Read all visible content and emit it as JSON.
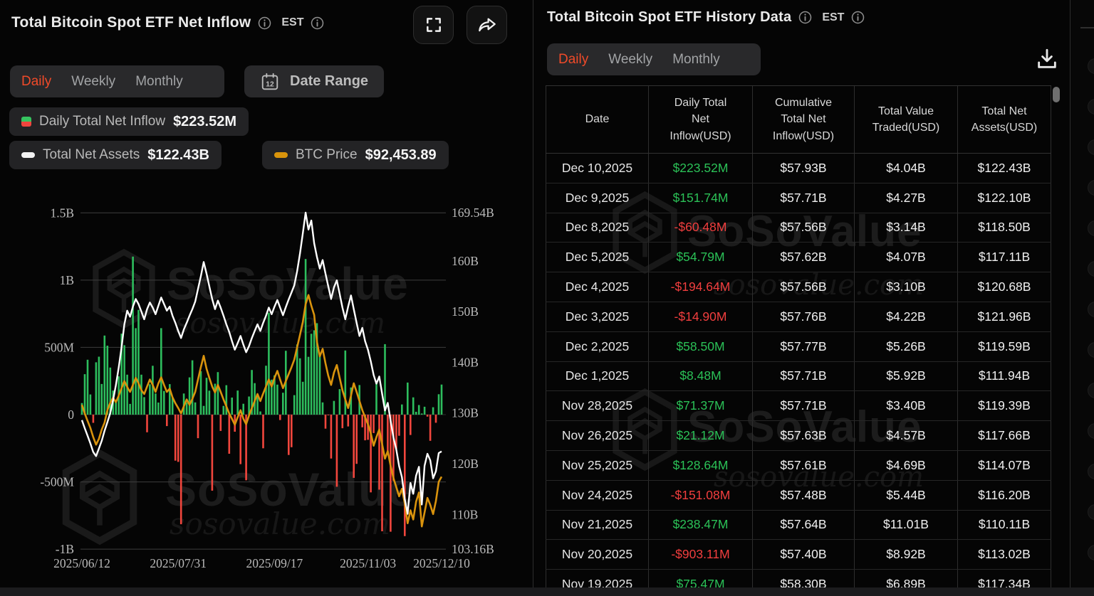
{
  "brand": {
    "name": "SoSoValue",
    "domain": "sosovalue.com"
  },
  "left_panel": {
    "title": "Total Bitcoin Spot ETF Net Inflow",
    "timezone": "EST",
    "tabs": [
      "Daily",
      "Weekly",
      "Monthly"
    ],
    "active_tab": "Daily",
    "date_range_label": "Date Range",
    "legend": [
      {
        "label": "Daily Total Net Inflow",
        "value": "$223.52M"
      },
      {
        "label": "Total Net Assets",
        "value": "$122.43B"
      },
      {
        "label": "BTC Price",
        "value": "$92,453.89"
      }
    ]
  },
  "right_panel": {
    "title": "Total Bitcoin Spot ETF History Data",
    "timezone": "EST",
    "tabs": [
      "Daily",
      "Weekly",
      "Monthly"
    ],
    "active_tab": "Daily",
    "table": {
      "columns": [
        "Date",
        "Daily Total\nNet\nInflow(USD)",
        "Cumulative\nTotal Net\nInflow(USD)",
        "Total Value\nTraded(USD)",
        "Total Net\nAssets(USD)"
      ],
      "rows": [
        {
          "date": "Dec 10,2025",
          "daily_net_inflow": "$223.52M",
          "direction": "positive",
          "cumulative_inflow": "$57.93B",
          "value_traded": "$4.04B",
          "net_assets": "$122.43B"
        },
        {
          "date": "Dec 9,2025",
          "daily_net_inflow": "$151.74M",
          "direction": "positive",
          "cumulative_inflow": "$57.71B",
          "value_traded": "$4.27B",
          "net_assets": "$122.10B"
        },
        {
          "date": "Dec 8,2025",
          "daily_net_inflow": "-$60.48M",
          "direction": "negative",
          "cumulative_inflow": "$57.56B",
          "value_traded": "$3.14B",
          "net_assets": "$118.50B"
        },
        {
          "date": "Dec 5,2025",
          "daily_net_inflow": "$54.79M",
          "direction": "positive",
          "cumulative_inflow": "$57.62B",
          "value_traded": "$4.07B",
          "net_assets": "$117.11B"
        },
        {
          "date": "Dec 4,2025",
          "daily_net_inflow": "-$194.64M",
          "direction": "negative",
          "cumulative_inflow": "$57.56B",
          "value_traded": "$3.10B",
          "net_assets": "$120.68B"
        },
        {
          "date": "Dec 3,2025",
          "daily_net_inflow": "-$14.90M",
          "direction": "negative",
          "cumulative_inflow": "$57.76B",
          "value_traded": "$4.22B",
          "net_assets": "$121.96B"
        },
        {
          "date": "Dec 2,2025",
          "daily_net_inflow": "$58.50M",
          "direction": "positive",
          "cumulative_inflow": "$57.77B",
          "value_traded": "$5.26B",
          "net_assets": "$119.59B"
        },
        {
          "date": "Dec 1,2025",
          "daily_net_inflow": "$8.48M",
          "direction": "positive",
          "cumulative_inflow": "$57.71B",
          "value_traded": "$5.92B",
          "net_assets": "$111.94B"
        },
        {
          "date": "Nov 28,2025",
          "daily_net_inflow": "$71.37M",
          "direction": "positive",
          "cumulative_inflow": "$57.71B",
          "value_traded": "$3.40B",
          "net_assets": "$119.39B"
        },
        {
          "date": "Nov 26,2025",
          "daily_net_inflow": "$21.12M",
          "direction": "positive",
          "cumulative_inflow": "$57.63B",
          "value_traded": "$4.57B",
          "net_assets": "$117.66B"
        },
        {
          "date": "Nov 25,2025",
          "daily_net_inflow": "$128.64M",
          "direction": "positive",
          "cumulative_inflow": "$57.61B",
          "value_traded": "$4.69B",
          "net_assets": "$114.07B"
        },
        {
          "date": "Nov 24,2025",
          "daily_net_inflow": "-$151.08M",
          "direction": "negative",
          "cumulative_inflow": "$57.48B",
          "value_traded": "$5.44B",
          "net_assets": "$116.20B"
        },
        {
          "date": "Nov 21,2025",
          "daily_net_inflow": "$238.47M",
          "direction": "positive",
          "cumulative_inflow": "$57.64B",
          "value_traded": "$11.01B",
          "net_assets": "$110.11B"
        },
        {
          "date": "Nov 20,2025",
          "daily_net_inflow": "-$903.11M",
          "direction": "negative",
          "cumulative_inflow": "$57.40B",
          "value_traded": "$8.92B",
          "net_assets": "$113.02B"
        },
        {
          "date": "Nov 19,2025",
          "daily_net_inflow": "$75.47M",
          "direction": "positive",
          "cumulative_inflow": "$58.30B",
          "value_traded": "$6.89B",
          "net_assets": "$117.34B"
        }
      ]
    }
  },
  "chart_data": {
    "type": "combo",
    "title": "Total Bitcoin Spot ETF Net Inflow (Daily)",
    "x_ticks": {
      "labels": [
        "2025/06/12",
        "2025/07/31",
        "2025/09/17",
        "2025/11/03",
        "2025/12/10"
      ],
      "indices": [
        0,
        34,
        68,
        101,
        127
      ]
    },
    "left_axis": {
      "name": "Daily Total Net Inflow (USD)",
      "tick_labels": [
        "1.5B",
        "1B",
        "500M",
        "0",
        "-500M",
        "-1B"
      ],
      "tick_values_M": [
        1500,
        1000,
        500,
        0,
        -500,
        -1000
      ]
    },
    "right_axis": {
      "name": "Total Net Assets (USD)",
      "tick_labels": [
        "169.54B",
        "160B",
        "150B",
        "140B",
        "130B",
        "120B",
        "110B",
        "103.16B"
      ],
      "tick_values_B": [
        169.54,
        160,
        150,
        140,
        130,
        120,
        110,
        103.16
      ],
      "range_B": [
        103.16,
        169.54
      ]
    },
    "btc_axis_range_USD": [
      79000,
      141500
    ],
    "grid": true,
    "legend_position": "top",
    "colors": {
      "positive_bar": "#2dbd5d",
      "negative_bar": "#f1463d",
      "net_assets_line": "#ffffff",
      "btc_line": "#d9930d"
    },
    "series": [
      {
        "name": "Daily Total Net Inflow",
        "type": "bar",
        "unit": "M USD",
        "values": [
          86,
          301,
          408,
          150,
          -61,
          389,
          431,
          228,
          588,
          513,
          350,
          179,
          102,
          285,
          602,
          516,
          297,
          80,
          1175,
          643,
          779,
          297,
          130,
          -131,
          226,
          363,
          157,
          90,
          643,
          176,
          -85,
          227,
          130,
          -342,
          -351,
          -815,
          157,
          91,
          277,
          404,
          91,
          -175,
          323,
          65,
          274,
          178,
          -565,
          230,
          316,
          -121,
          65,
          219,
          -291,
          127,
          -127,
          179,
          -368,
          81,
          -488,
          135,
          332,
          234,
          141,
          24,
          -250,
          364,
          757,
          260,
          292,
          223,
          -40,
          163,
          475,
          -300,
          -242,
          145,
          522,
          419,
          244,
          1157,
          430,
          601,
          627,
          680,
          442,
          91,
          -104,
          -5,
          -326,
          102,
          -536,
          190,
          -101,
          477,
          -88,
          202,
          -470,
          -366,
          220,
          -94,
          -191,
          -187,
          -578,
          -137,
          240,
          -558,
          -867,
          524,
          -278,
          -870,
          -492,
          -254,
          -157,
          75.47,
          -903.11,
          238.47,
          -151.08,
          128.64,
          21.12,
          71.37,
          8.48,
          58.5,
          -14.9,
          -194.64,
          54.79,
          -60.48,
          151.74,
          223.52
        ]
      },
      {
        "name": "Total Net Assets",
        "type": "line",
        "unit": "B USD",
        "values": [
          128.6,
          127.0,
          125.5,
          124.0,
          122.3,
          121.5,
          123.0,
          124.5,
          126.5,
          128.2,
          130.0,
          132.5,
          135.5,
          139.0,
          143.0,
          147.5,
          150.2,
          149.0,
          151.0,
          152.5,
          151.5,
          150.0,
          148.5,
          150.5,
          151.8,
          150.8,
          149.5,
          151.2,
          152.8,
          151.5,
          150.2,
          151.0,
          149.2,
          147.8,
          146.2,
          144.8,
          146.5,
          147.8,
          149.2,
          150.5,
          152.0,
          154.5,
          157.0,
          159.8,
          157.5,
          155.0,
          152.5,
          150.5,
          152.2,
          150.8,
          149.2,
          147.5,
          146.0,
          144.2,
          142.5,
          143.8,
          145.2,
          143.5,
          142.0,
          143.2,
          144.8,
          146.2,
          147.5,
          146.2,
          147.8,
          149.2,
          150.8,
          149.5,
          151.0,
          152.3,
          150.8,
          149.3,
          150.9,
          152.4,
          153.8,
          155.2,
          158.0,
          161.5,
          165.5,
          169.54,
          166.2,
          168.0,
          163.5,
          160.8,
          158.5,
          160.2,
          157.5,
          155.0,
          152.5,
          154.8,
          156.2,
          153.5,
          150.8,
          148.5,
          151.0,
          153.2,
          150.5,
          147.8,
          145.2,
          146.8,
          144.2,
          142.5,
          140.2,
          137.5,
          135.8,
          137.2,
          133.8,
          130.5,
          132.0,
          128.5,
          125.2,
          122.8,
          119.5,
          117.34,
          113.02,
          110.11,
          116.2,
          114.07,
          117.66,
          119.39,
          111.94,
          119.59,
          121.96,
          120.68,
          117.11,
          118.5,
          122.1,
          122.43
        ]
      },
      {
        "name": "BTC Price",
        "type": "line",
        "unit": "USD",
        "values": [
          105800,
          104200,
          102800,
          101500,
          99800,
          98400,
          99500,
          101200,
          102500,
          104800,
          106200,
          107100,
          106300,
          107500,
          108900,
          110200,
          109100,
          108200,
          109500,
          110800,
          109800,
          108500,
          107800,
          109200,
          110500,
          109500,
          108200,
          109800,
          110900,
          109500,
          108200,
          108800,
          107200,
          106100,
          105200,
          104200,
          105500,
          106800,
          105800,
          106900,
          108200,
          110500,
          112800,
          114900,
          112500,
          110800,
          109200,
          108100,
          109500,
          108200,
          106800,
          105500,
          104200,
          103200,
          102100,
          103500,
          104800,
          103200,
          102200,
          103800,
          105200,
          106500,
          107800,
          106500,
          107900,
          109200,
          110500,
          109200,
          110800,
          112100,
          110500,
          108900,
          110200,
          111500,
          112800,
          114200,
          116500,
          118800,
          121200,
          124500,
          126200,
          124200,
          122500,
          117500,
          114800,
          116200,
          113500,
          111200,
          109500,
          111800,
          113200,
          110800,
          108500,
          106800,
          105200,
          107500,
          109800,
          108200,
          106500,
          104800,
          103500,
          102200,
          100500,
          98200,
          99800,
          101200,
          98500,
          95800,
          97200,
          94500,
          92200,
          90500,
          88800,
          90200,
          87500,
          83800,
          86200,
          84500,
          87800,
          89500,
          83200,
          85800,
          88500,
          87200,
          85500,
          87900,
          91500,
          92454
        ]
      }
    ]
  }
}
